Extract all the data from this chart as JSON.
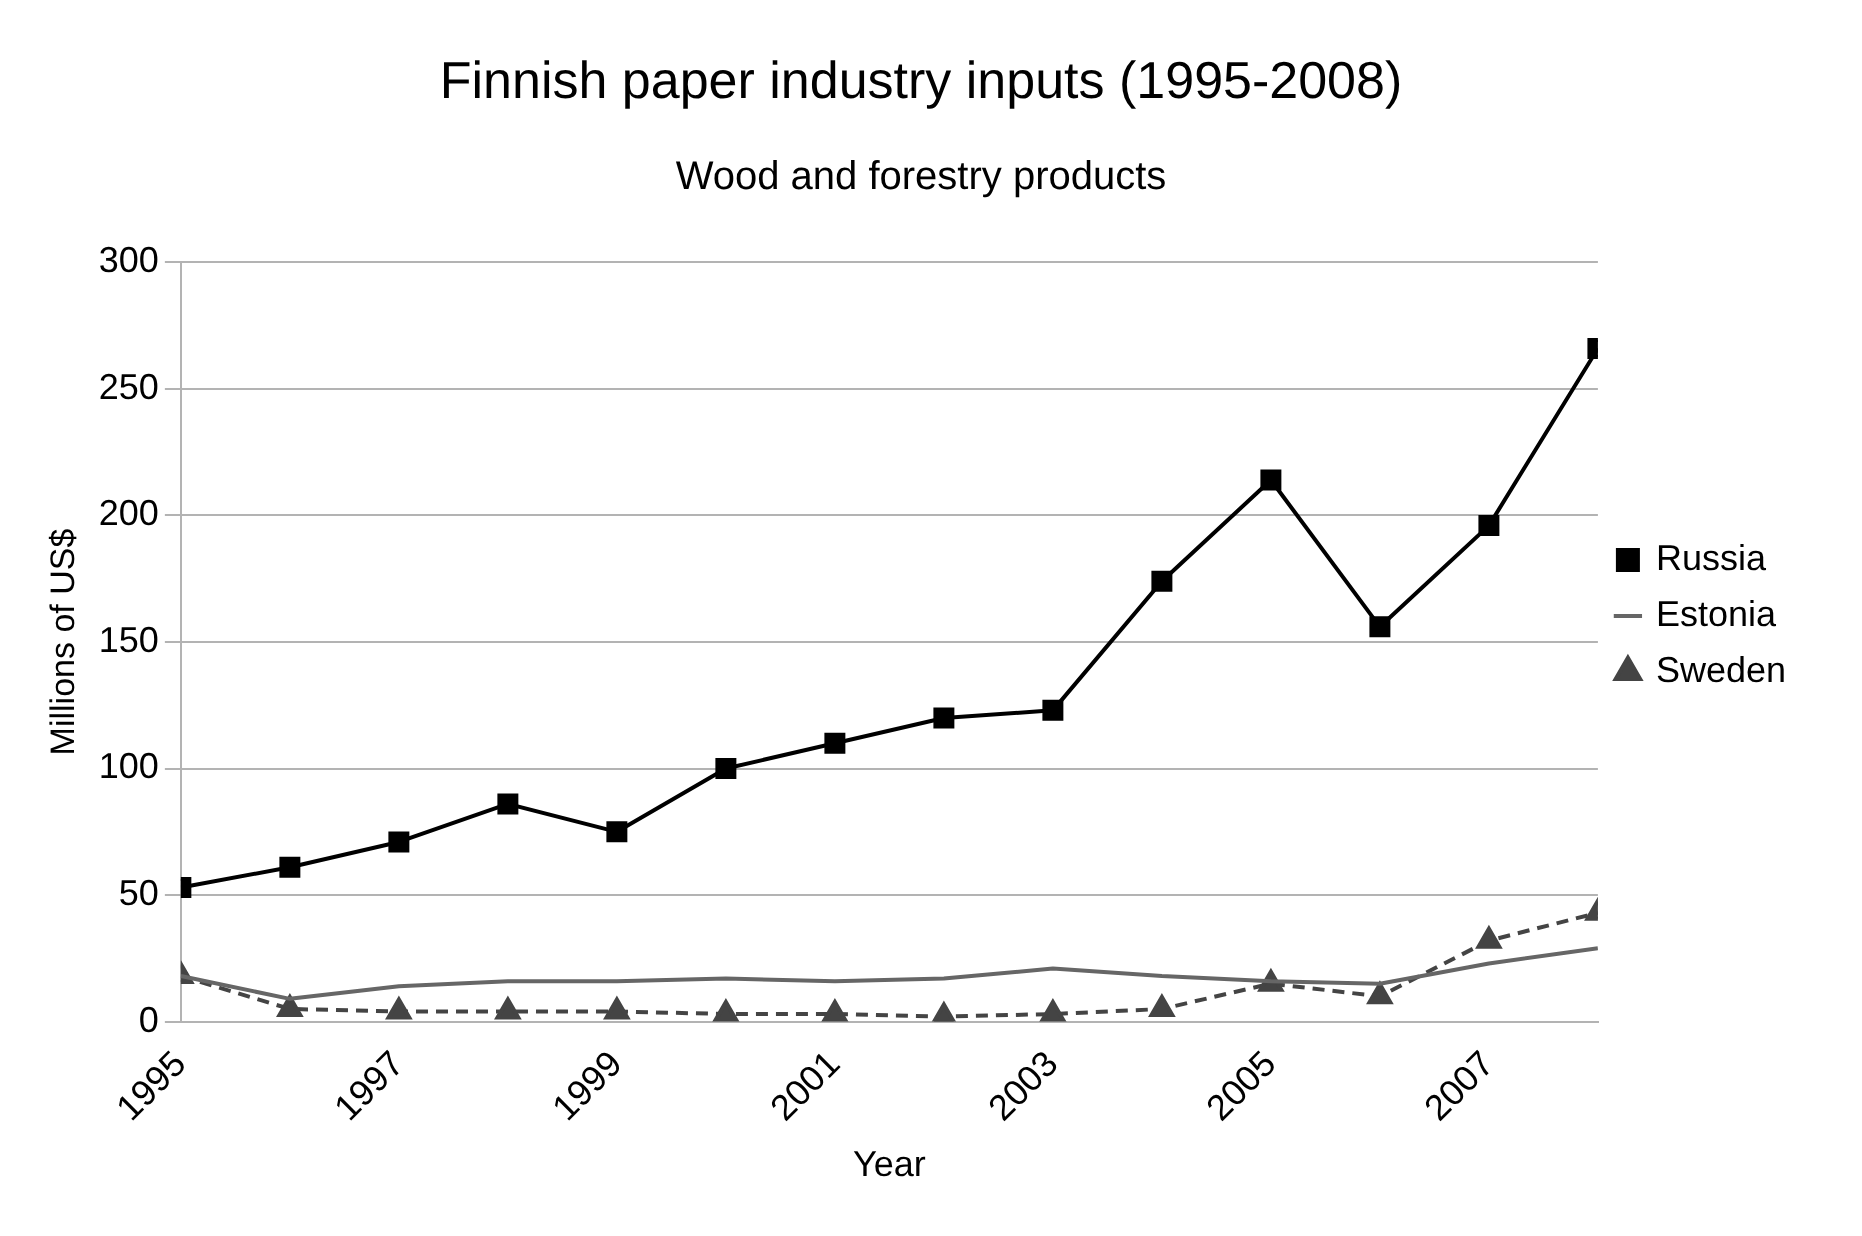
{
  "chart_data": {
    "type": "line",
    "title": "Finnish paper industry inputs (1995-2008)",
    "subtitle": "Wood and forestry products",
    "xlabel": "Year",
    "ylabel": "Millions of US$",
    "x": [
      1995,
      1996,
      1997,
      1998,
      1999,
      2000,
      2001,
      2002,
      2003,
      2004,
      2005,
      2006,
      2007,
      2008
    ],
    "series": [
      {
        "name": "Russia",
        "color": "#000000",
        "marker": "square",
        "line_style": "solid",
        "values": [
          53,
          61,
          71,
          86,
          75,
          100,
          110,
          120,
          123,
          174,
          214,
          156,
          196,
          266
        ]
      },
      {
        "name": "Estonia",
        "color": "#666666",
        "marker": "none",
        "line_style": "solid",
        "values": [
          18,
          9,
          14,
          16,
          16,
          17,
          16,
          17,
          21,
          18,
          16,
          15,
          23,
          29
        ]
      },
      {
        "name": "Sweden",
        "color": "#444444",
        "marker": "triangle",
        "line_style": "dashed",
        "values": [
          18,
          5,
          4,
          4,
          4,
          3,
          3,
          2,
          3,
          5,
          15,
          10,
          32,
          43
        ]
      }
    ],
    "xlim": [
      1995,
      2008
    ],
    "xticks": [
      1995,
      1997,
      1999,
      2001,
      2003,
      2005,
      2007
    ],
    "ylim": [
      0,
      300
    ],
    "yticks": [
      0,
      50,
      100,
      150,
      200,
      250,
      300
    ],
    "grid": "y",
    "legend": "right"
  }
}
